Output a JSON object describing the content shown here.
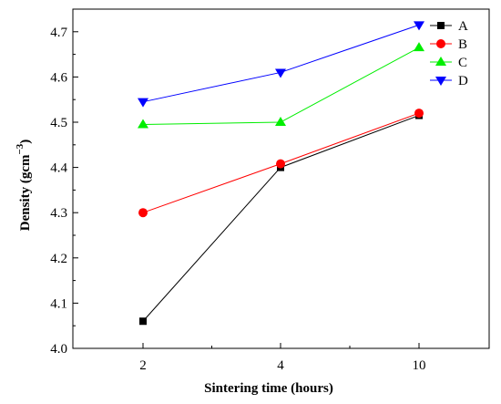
{
  "chart_data": {
    "type": "line",
    "xlabel": "Sintering time (hours)",
    "ylabel": "Density (gcm",
    "ylabel_superscript": "−3",
    "ylabel_close": ")",
    "categories": [
      "2",
      "4",
      "10"
    ],
    "ylim": [
      4.0,
      4.75
    ],
    "yticks": [
      "4.0",
      "4.1",
      "4.2",
      "4.3",
      "4.4",
      "4.5",
      "4.6",
      "4.7"
    ],
    "grid": false,
    "legend_position": "top-right",
    "series": [
      {
        "name": "A",
        "values": [
          4.06,
          4.4,
          4.515
        ],
        "color": "#000000",
        "marker": "square"
      },
      {
        "name": "B",
        "values": [
          4.3,
          4.408,
          4.52
        ],
        "color": "#ff0000",
        "marker": "circle"
      },
      {
        "name": "C",
        "values": [
          4.495,
          4.5,
          4.665
        ],
        "color": "#00ee00",
        "marker": "triangle-up"
      },
      {
        "name": "D",
        "values": [
          4.545,
          4.61,
          4.715
        ],
        "color": "#0000ff",
        "marker": "triangle-down"
      }
    ]
  }
}
